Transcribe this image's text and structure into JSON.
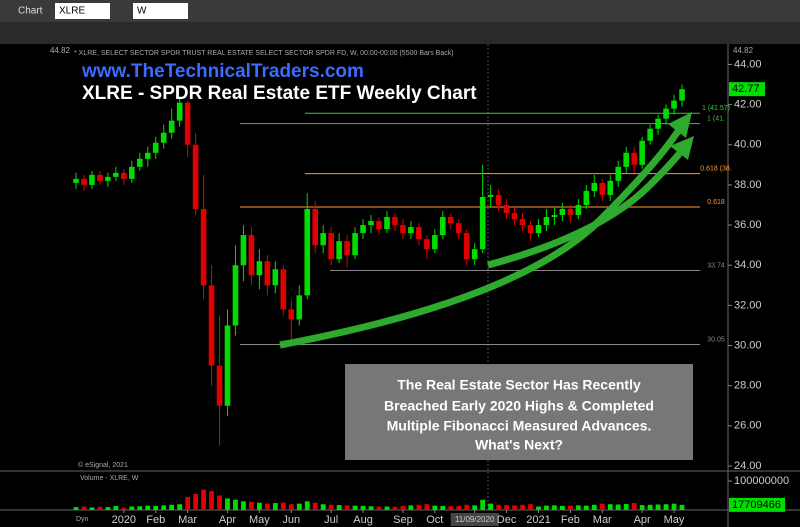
{
  "ui": {
    "chart_tab": "Chart",
    "symbol": "XLRE",
    "interval": "W",
    "header": "* XLRE, SELECT SECTOR SPDR TRUST REAL ESTATE SELECT SECTOR SPDR FD, W, 00:00-00:00 (5500 Bars Back)",
    "copyright": "© eSignal, 2021",
    "volume_header": "Volume - XLRE, W",
    "corner": "Dyn"
  },
  "chart_data": [
    {
      "type": "candlestick",
      "title": "XLRE - SPDR Real Estate ETF Weekly Chart",
      "subtitle": "www.TheTechnicalTraders.com",
      "annotation": [
        "The Real Estate Sector Has Recently",
        "Breached Early 2020 Highs & Completed",
        "Multiple Fibonacci Measured Advances.",
        "What's Next?"
      ],
      "open": [
        38.1,
        38.3,
        38.0,
        38.5,
        38.2,
        38.4,
        38.6,
        38.3,
        38.9,
        39.3,
        39.6,
        40.1,
        40.6,
        41.2,
        42.1,
        40.0,
        36.8,
        33.0,
        29.0,
        27.0,
        31.0,
        34.0,
        35.5,
        33.5,
        34.2,
        33.0,
        33.8,
        31.8,
        31.3,
        32.5,
        36.8,
        35.0,
        35.6,
        34.3,
        35.2,
        34.5,
        35.6,
        36.0,
        36.2,
        35.8,
        36.4,
        36.0,
        35.6,
        35.9,
        35.3,
        34.8,
        35.5,
        36.4,
        36.1,
        35.6,
        34.3,
        34.8,
        37.4,
        37.5,
        37.0,
        36.6,
        36.3,
        36.0,
        35.6,
        36.0,
        36.4,
        36.5,
        36.8,
        36.5,
        37.0,
        37.7,
        38.1,
        37.5,
        38.2,
        38.9,
        39.6,
        39.0,
        40.2,
        40.8,
        41.3,
        41.8,
        42.2
      ],
      "high": [
        38.6,
        38.5,
        38.7,
        38.7,
        38.6,
        38.9,
        38.8,
        39.2,
        39.6,
        39.9,
        40.4,
        41.0,
        41.8,
        42.4,
        42.2,
        40.6,
        38.5,
        34.0,
        31.5,
        31.8,
        35.0,
        36.0,
        35.9,
        34.8,
        34.5,
        34.2,
        34.0,
        32.3,
        33.0,
        37.6,
        37.2,
        36.0,
        35.9,
        35.6,
        35.5,
        35.9,
        36.3,
        36.5,
        36.4,
        36.7,
        36.6,
        36.3,
        36.2,
        36.1,
        35.5,
        35.8,
        36.7,
        36.6,
        36.3,
        35.8,
        35.1,
        39.0,
        38.0,
        37.8,
        37.3,
        36.9,
        36.6,
        36.2,
        36.3,
        36.8,
        36.9,
        37.1,
        37.0,
        37.3,
        38.0,
        38.5,
        38.3,
        38.5,
        39.2,
        39.9,
        39.9,
        40.4,
        41.0,
        41.5,
        42.0,
        42.5,
        43.0
      ],
      "low": [
        37.8,
        37.7,
        37.8,
        38.0,
        37.9,
        38.2,
        38.0,
        38.1,
        38.7,
        38.9,
        39.3,
        39.8,
        40.3,
        40.9,
        39.4,
        36.5,
        32.3,
        28.0,
        25.0,
        26.5,
        30.5,
        33.2,
        33.0,
        32.8,
        32.5,
        32.6,
        31.5,
        30.2,
        31.0,
        32.3,
        34.6,
        34.6,
        34.0,
        34.1,
        33.9,
        34.3,
        35.3,
        35.6,
        35.5,
        35.6,
        35.7,
        35.3,
        35.3,
        35.0,
        34.3,
        34.6,
        35.3,
        35.8,
        35.3,
        34.0,
        34.0,
        34.6,
        36.9,
        36.7,
        36.3,
        36.0,
        35.7,
        35.2,
        35.4,
        35.7,
        36.0,
        36.2,
        36.1,
        36.3,
        36.8,
        37.4,
        37.2,
        37.2,
        37.9,
        38.6,
        38.6,
        38.8,
        40.0,
        40.5,
        41.0,
        41.5,
        41.9
      ],
      "close": [
        38.3,
        38.0,
        38.5,
        38.2,
        38.4,
        38.6,
        38.3,
        38.9,
        39.3,
        39.6,
        40.1,
        40.6,
        41.2,
        42.1,
        40.0,
        36.8,
        33.0,
        29.0,
        27.0,
        31.0,
        34.0,
        35.5,
        33.5,
        34.2,
        33.0,
        33.8,
        31.8,
        31.3,
        32.5,
        36.8,
        35.0,
        35.6,
        34.3,
        35.2,
        34.5,
        35.6,
        36.0,
        36.2,
        35.8,
        36.4,
        36.0,
        35.6,
        35.9,
        35.3,
        34.8,
        35.5,
        36.4,
        36.1,
        35.6,
        34.3,
        34.8,
        37.4,
        37.5,
        37.0,
        36.6,
        36.3,
        36.0,
        35.6,
        36.0,
        36.4,
        36.5,
        36.8,
        36.5,
        37.0,
        37.7,
        38.1,
        37.5,
        38.2,
        38.9,
        39.6,
        39.0,
        40.2,
        40.8,
        41.3,
        41.8,
        42.2,
        42.77
      ],
      "up_color": "#00dd00",
      "down_color": "#e00000",
      "xlim": [
        -0.5,
        76.5
      ],
      "xticks": [
        {
          "value": 7,
          "label": "2020"
        },
        {
          "value": 11,
          "label": "Feb"
        },
        {
          "value": 15,
          "label": "Mar"
        },
        {
          "value": 20,
          "label": "Apr"
        },
        {
          "value": 24,
          "label": "May"
        },
        {
          "value": 28,
          "label": "Jun"
        },
        {
          "value": 33,
          "label": "Jul"
        },
        {
          "value": 37,
          "label": "Aug"
        },
        {
          "value": 42,
          "label": "Sep"
        },
        {
          "value": 46,
          "label": "Oct"
        },
        {
          "value": 51,
          "label": "11/09/2020"
        },
        {
          "value": 55,
          "label": "Dec"
        },
        {
          "value": 59,
          "label": "2021"
        },
        {
          "value": 63,
          "label": "Feb"
        },
        {
          "value": 67,
          "label": "Mar"
        },
        {
          "value": 72,
          "label": "Apr"
        },
        {
          "value": 76,
          "label": "May"
        }
      ],
      "ylim": [
        23.8,
        44.82
      ],
      "yticks": [
        {
          "value": 24,
          "label": "24.00"
        },
        {
          "value": 26,
          "label": "26.00"
        },
        {
          "value": 28,
          "label": "28.00"
        },
        {
          "value": 30,
          "label": "30.00"
        },
        {
          "value": 32,
          "label": "32.00"
        },
        {
          "value": 34,
          "label": "34.00"
        },
        {
          "value": 36,
          "label": "36.00"
        },
        {
          "value": 38,
          "label": "38.00"
        },
        {
          "value": 40,
          "label": "40.00"
        },
        {
          "value": 42,
          "label": "42.00"
        },
        {
          "value": 44,
          "label": "44.00"
        }
      ],
      "levels": [
        {
          "value": 41.57,
          "label": "1 (41.57)",
          "color": "#33cc33"
        },
        {
          "value": 41.05,
          "label": "1 (41.",
          "color": "#33cc33"
        },
        {
          "value": 38.56,
          "label": "0.618 (38.",
          "color": "#ff9933"
        },
        {
          "value": 36.9,
          "label": "0.618",
          "color": "#ff9933"
        },
        {
          "value": 33.74,
          "color": "#888888"
        },
        {
          "value": 30.05,
          "color": "#888888"
        }
      ]
    },
    {
      "type": "volume",
      "values": [
        10000000,
        12000000,
        9000000,
        11000000,
        10000000,
        14000000,
        8000000,
        12000000,
        13000000,
        15000000,
        14000000,
        16000000,
        18000000,
        20000000,
        45000000,
        55000000,
        70000000,
        65000000,
        50000000,
        40000000,
        35000000,
        30000000,
        28000000,
        25000000,
        22000000,
        24000000,
        26000000,
        20000000,
        22000000,
        30000000,
        25000000,
        20000000,
        18000000,
        17000000,
        16000000,
        15000000,
        14000000,
        13000000,
        12000000,
        12000000,
        11000000,
        14000000,
        16000000,
        18000000,
        20000000,
        15000000,
        14000000,
        13000000,
        14000000,
        18000000,
        16000000,
        35000000,
        22000000,
        18000000,
        17000000,
        16000000,
        18000000,
        20000000,
        12000000,
        15000000,
        16000000,
        14000000,
        15000000,
        16000000,
        15000000,
        18000000,
        22000000,
        20000000,
        19000000,
        21000000,
        24000000,
        17000000,
        18000000,
        19000000,
        20000000,
        22000000,
        17709466
      ],
      "ylim": [
        0,
        100000000
      ],
      "yticks": [
        100000000
      ]
    }
  ]
}
